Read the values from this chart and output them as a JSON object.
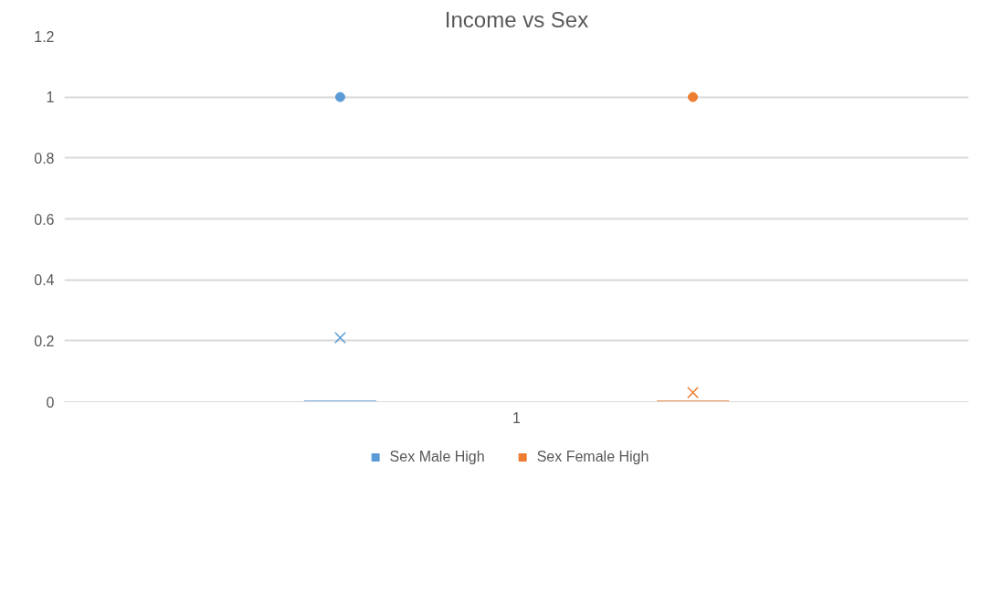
{
  "chart_data": {
    "type": "box",
    "title": "Income vs Sex",
    "categories": [
      "1"
    ],
    "series": [
      {
        "name": "Sex Male High",
        "color": "#5b9bd5",
        "boxes": [
          {
            "low": 0,
            "q1": 0,
            "median": 0,
            "q3": 0,
            "high": 0,
            "mean": 0.21,
            "outliers": [
              1
            ]
          }
        ]
      },
      {
        "name": "Sex Female High",
        "color": "#ed7d31",
        "boxes": [
          {
            "low": 0,
            "q1": 0,
            "median": 0,
            "q3": 0,
            "high": 0,
            "mean": 0.03,
            "outliers": [
              1
            ]
          }
        ]
      }
    ],
    "ylim": [
      0,
      1.2
    ],
    "yticks": [
      0,
      {
        "value": 0.2,
        "label": "0.2"
      },
      {
        "value": 0.4,
        "label": "0.4"
      },
      {
        "value": 0.6,
        "label": "0.6"
      },
      {
        "value": 0.8,
        "label": "0.8"
      },
      1,
      {
        "value": 1.2,
        "label": "1.2"
      }
    ],
    "grid": "y",
    "legend": "bottom"
  }
}
